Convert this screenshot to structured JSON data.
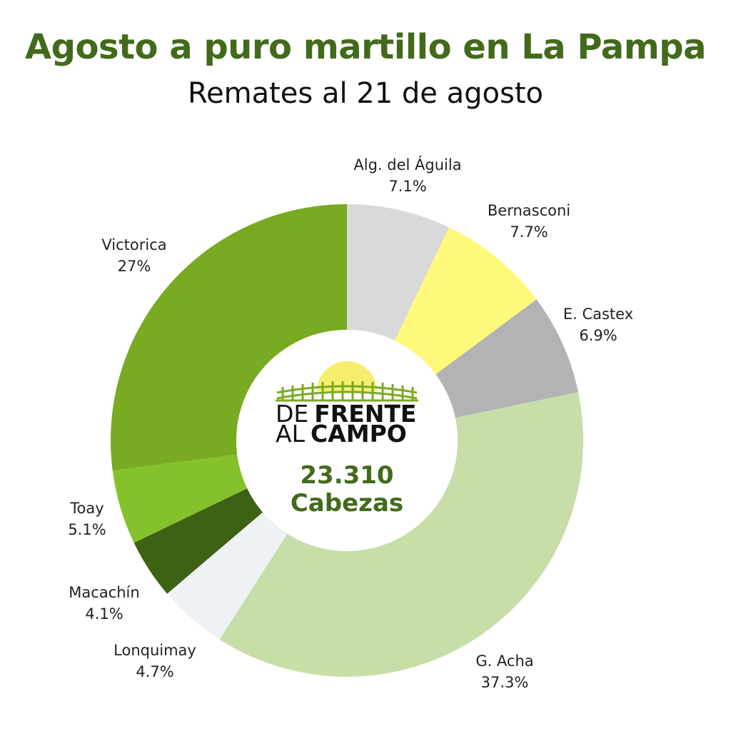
{
  "title": "Agosto a puro martillo en La Pampa",
  "subtitle": "Remates al 21 de agosto",
  "logo": {
    "line1_light": "DE",
    "line1_bold": "FRENTE",
    "line2_light": "AL",
    "line2_bold": "CAMPO"
  },
  "center": {
    "total": "23.310",
    "unit": "Cabezas"
  },
  "colors": {
    "title": "#426a1b",
    "sun": "#f5ee6c",
    "fence": "#7aaa26"
  },
  "chart_data": {
    "type": "pie",
    "donut": true,
    "title": "",
    "total_label": "23.310 Cabezas",
    "slices": [
      {
        "label": "Alg. del Águila",
        "value": 7.1,
        "pct_label": "7.1%",
        "color": "#d9d9d9"
      },
      {
        "label": "Bernasconi",
        "value": 7.7,
        "pct_label": "7.7%",
        "color": "#fef97a"
      },
      {
        "label": "E. Castex",
        "value": 6.9,
        "pct_label": "6.9%",
        "color": "#b3b3b3"
      },
      {
        "label": "G. Acha",
        "value": 37.3,
        "pct_label": "37.3%",
        "color": "#c7dea8"
      },
      {
        "label": "Lonquimay",
        "value": 4.7,
        "pct_label": "4.7%",
        "color": "#eef2f5"
      },
      {
        "label": "Macachín",
        "value": 4.1,
        "pct_label": "4.1%",
        "color": "#3d6214"
      },
      {
        "label": "Toay",
        "value": 5.1,
        "pct_label": "5.1%",
        "color": "#84c12a"
      },
      {
        "label": "Victorica",
        "value": 27,
        "pct_label": "27%",
        "color": "#78aa22"
      }
    ]
  }
}
